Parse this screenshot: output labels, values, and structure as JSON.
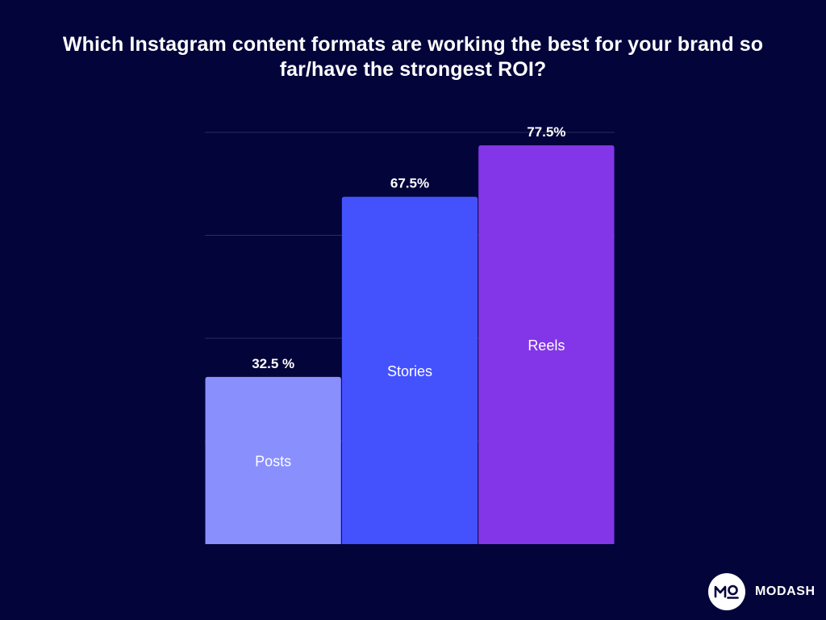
{
  "chart_data": {
    "type": "bar",
    "title": "Which Instagram content formats are working the best for your brand so far/have the strongest ROI?",
    "categories": [
      "Posts",
      "Stories",
      "Reels"
    ],
    "values": [
      32.5,
      67.5,
      77.5
    ],
    "value_labels": [
      "32.5 %",
      "67.5%",
      "77.5%"
    ],
    "colors": [
      "#8a8ffe",
      "#4452fe",
      "#8236e8"
    ],
    "ylim": [
      0,
      80
    ],
    "gridlines": [
      20,
      40,
      60,
      80
    ],
    "grid": true,
    "xlabel": "",
    "ylabel": ""
  },
  "brand": {
    "logo_text": "MO",
    "name": "MODASH"
  }
}
